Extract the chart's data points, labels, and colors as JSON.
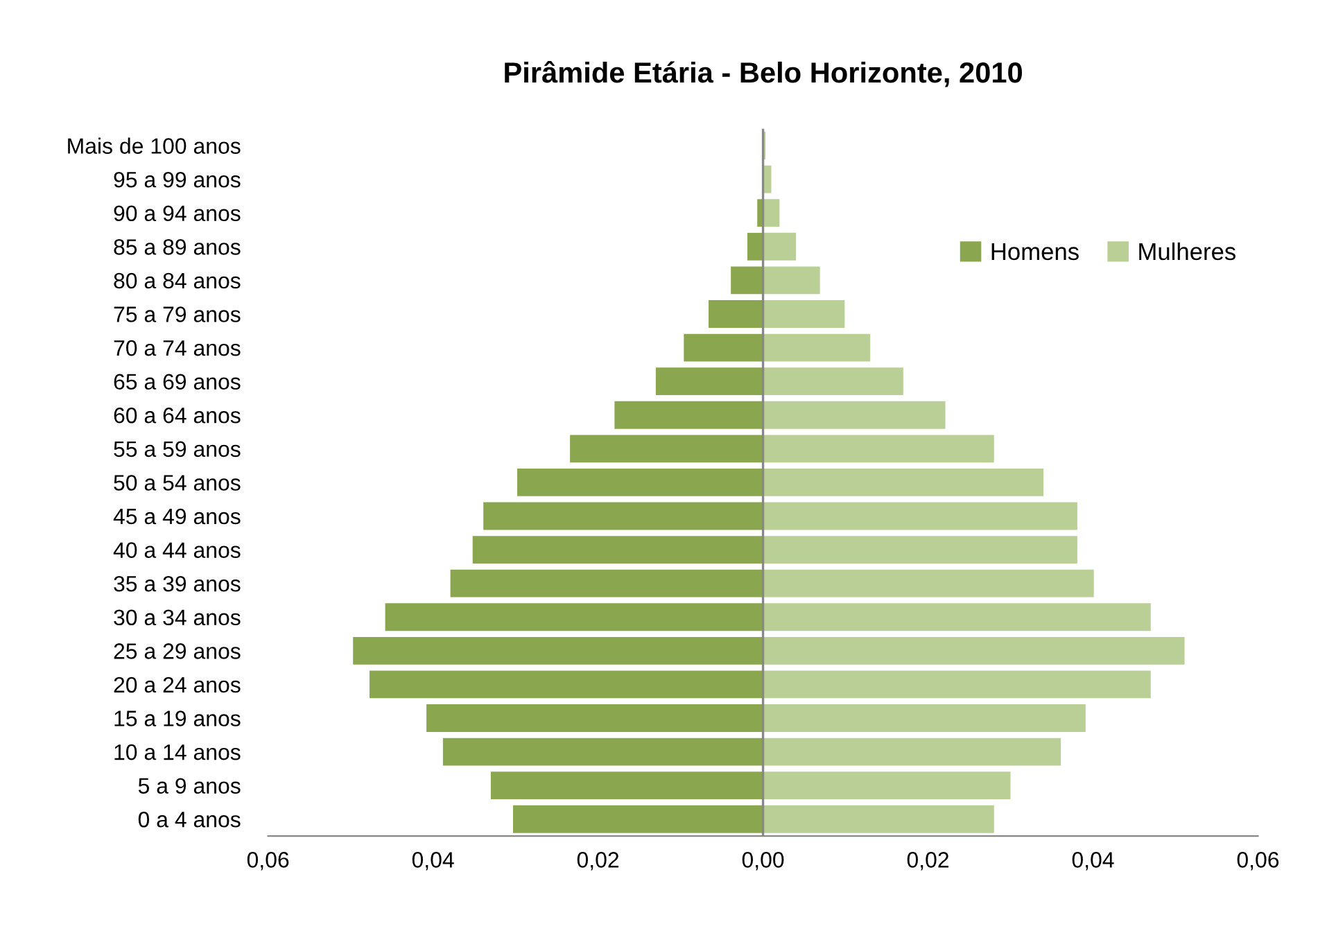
{
  "chart_data": {
    "type": "bar",
    "title": "Pirâmide Etária - Belo Horizonte, 2010",
    "orientation": "horizontal",
    "stacked": true,
    "ref_lines": [
      {
        "axis": "x",
        "value": 0,
        "color": "#888888"
      }
    ],
    "categories": [
      "Mais de 100 anos",
      "95 a 99 anos",
      "90 a 94 anos",
      "85 a 89 anos",
      "80 a 84 anos",
      "75 a 79 anos",
      "70 a 74 anos",
      "65 a 69 anos",
      "60 a 64 anos",
      "55 a 59 anos",
      "50 a 54 anos",
      "45 a 49 anos",
      "40 a 44 anos",
      "35 a 39 anos",
      "30 a 34 anos",
      "25 a 29 anos",
      "20 a 24 anos",
      "15 a 19 anos",
      "10 a 14 anos",
      "5 a 9 anos",
      "0 a 4 anos"
    ],
    "series": [
      {
        "name": "Homens",
        "color": "#8aa64f",
        "values": [
          0,
          null,
          -0.0007,
          -0.0019,
          -0.0039,
          -0.0066,
          -0.0096,
          -0.013,
          -0.018,
          -0.0234,
          -0.0298,
          -0.0339,
          -0.0352,
          -0.0379,
          -0.0458,
          -0.0497,
          -0.0477,
          -0.0408,
          -0.0388,
          -0.033,
          -0.0303
        ]
      },
      {
        "name": "Mulheres",
        "color": "#b9cf95",
        "values": [
          0.0003,
          0.001,
          0.002,
          0.004,
          0.0069,
          0.0099,
          0.013,
          0.017,
          0.0221,
          0.028,
          0.034,
          0.0381,
          0.0381,
          0.0401,
          0.047,
          0.0511,
          0.047,
          0.0391,
          0.0361,
          0.03,
          0.028
        ]
      }
    ],
    "xlim": [
      -0.06,
      0.06
    ],
    "xticks": [
      {
        "value": -0.06,
        "label": "0,06"
      },
      {
        "value": -0.04,
        "label": "0,04"
      },
      {
        "value": -0.02,
        "label": "0,02"
      },
      {
        "value": 0,
        "label": "0,00"
      },
      {
        "value": 0.02,
        "label": "0,02"
      },
      {
        "value": 0.04,
        "label": "0,04"
      },
      {
        "value": 0.06,
        "label": "0,06"
      }
    ],
    "legend": "top right",
    "grid": false
  }
}
